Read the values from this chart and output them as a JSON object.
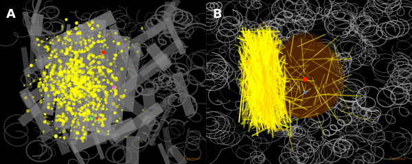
{
  "fig_width": 6.0,
  "fig_height": 2.39,
  "dpi": 100,
  "bg_color": "#000000",
  "panel_A_label": "A",
  "panel_B_label": "B",
  "label_color": "#ffffff",
  "label_fontsize": 13,
  "label_fontweight": "bold",
  "protein_color_A": "#808080",
  "ribbon_color_A": "#909090",
  "loop_color_A": "#6a6a6a",
  "protein_color_B": "#888888",
  "tunnel_yellow": "#ffff00",
  "tunnel_gold": "#cc8800",
  "tunnel_orange": "#884400",
  "red_dot_color": "#ff2200",
  "magenta_dot_color": "#ff44ff",
  "green_dot_color": "#44ff44",
  "blue_dot_color": "#4488ff",
  "watermark_color": "#aa6600",
  "seed_A_ribbon": 101,
  "seed_A_loop": 202,
  "seed_A_dots": 303,
  "seed_B_loop": 404,
  "seed_B_tunnel": 505
}
